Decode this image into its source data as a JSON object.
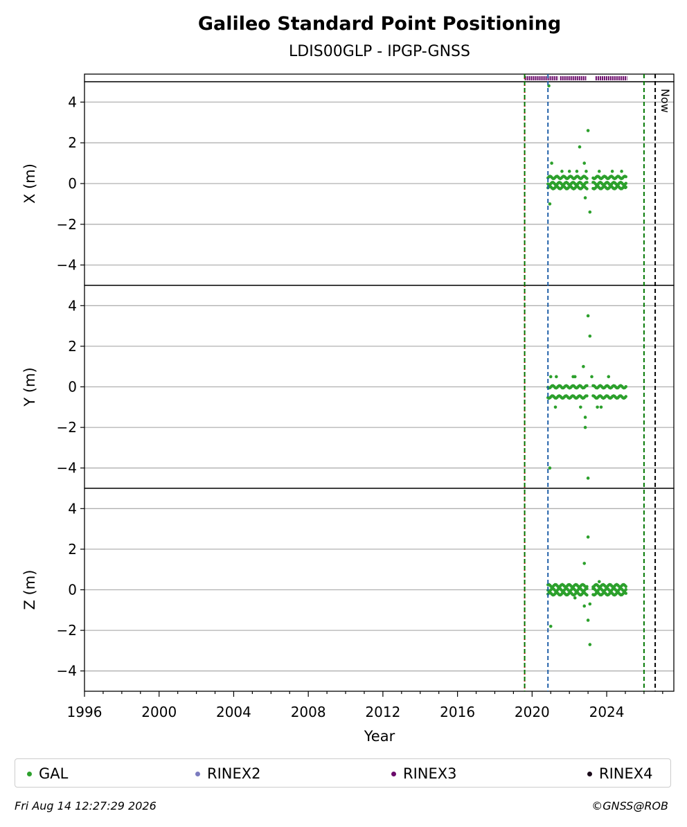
{
  "footer": {
    "date": "Fri Aug 14 12:27:29 2026",
    "copyright": "©GNSS@ROB"
  },
  "legend": [
    {
      "label": "GAL",
      "color": "#2ca02c"
    },
    {
      "label": "RINEX2",
      "color": "#7b7bbf"
    },
    {
      "label": "RINEX3",
      "color": "#6b0a6b"
    },
    {
      "label": "RINEX4",
      "color": "#1a0a1a"
    }
  ],
  "chart_data": {
    "type": "scatter",
    "title": "Galileo Standard Point Positioning",
    "subtitle": "LDIS00GLP - IPGP-GNSS",
    "xlabel": "Year",
    "xlim": [
      1996,
      2027.6
    ],
    "xticks": [
      "1996",
      "2000",
      "2004",
      "2008",
      "2012",
      "2016",
      "2020",
      "2024"
    ],
    "ylim": [
      -5,
      5
    ],
    "yticks": [
      "−4",
      "−2",
      "0",
      "2",
      "4"
    ],
    "grid": true,
    "legend_position": "bottom",
    "vertical_lines": [
      {
        "x": 2019.6,
        "color": "#cc0000",
        "style": "dotted"
      },
      {
        "x": 2019.6,
        "color": "#007700",
        "style": "dashed"
      },
      {
        "x": 2020.85,
        "color": "#1f5fa8",
        "style": "dashed"
      },
      {
        "x": 2026.0,
        "color": "#007700",
        "style": "dashed"
      },
      {
        "x": 2026.6,
        "color": "#000000",
        "style": "dashed",
        "label": "Now"
      }
    ],
    "rinex3_coverage": [
      [
        2019.6,
        2021.4
      ],
      [
        2021.5,
        2022.9
      ],
      [
        2023.4,
        2025.1
      ]
    ],
    "panels": [
      {
        "ylabel": "X (m)",
        "series": [
          {
            "name": "GAL",
            "color": "#2ca02c",
            "points": [
              [
                2020.9,
                4.8
              ],
              [
                2020.95,
                -1.0
              ],
              [
                2021.05,
                1.0
              ],
              [
                2022.55,
                1.8
              ],
              [
                2022.8,
                1.0
              ],
              [
                2023.0,
                2.6
              ],
              [
                2023.1,
                -1.4
              ],
              [
                2022.85,
                -0.7
              ],
              [
                2021.6,
                0.6
              ],
              [
                2022.0,
                0.6
              ],
              [
                2022.4,
                0.6
              ],
              [
                2022.9,
                0.6
              ],
              [
                2023.6,
                0.6
              ],
              [
                2024.3,
                0.6
              ],
              [
                2024.8,
                0.6
              ],
              [
                2025.0,
                -0.2
              ]
            ],
            "bands": [
              [
                2020.85,
                2025.05,
                [
                  -0.2,
                  0.0,
                  0.3
                ]
              ]
            ]
          }
        ]
      },
      {
        "ylabel": "Y (m)",
        "series": [
          {
            "name": "GAL",
            "color": "#2ca02c",
            "points": [
              [
                2020.95,
                -4.0
              ],
              [
                2021.25,
                -1.0
              ],
              [
                2022.75,
                1.0
              ],
              [
                2023.0,
                3.5
              ],
              [
                2023.1,
                2.5
              ],
              [
                2022.85,
                -1.5
              ],
              [
                2022.85,
                -2.0
              ],
              [
                2023.0,
                -4.5
              ],
              [
                2022.6,
                -1.0
              ],
              [
                2023.7,
                -1.0
              ],
              [
                2023.5,
                -1.0
              ],
              [
                2021.0,
                0.5
              ],
              [
                2021.3,
                0.5
              ],
              [
                2022.2,
                0.5
              ],
              [
                2022.3,
                0.5
              ],
              [
                2023.2,
                0.5
              ],
              [
                2024.1,
                0.5
              ]
            ],
            "bands": [
              [
                2020.85,
                2025.05,
                [
                  -0.5,
                  0.0
                ]
              ]
            ]
          }
        ]
      },
      {
        "ylabel": "Z (m)",
        "series": [
          {
            "name": "GAL",
            "color": "#2ca02c",
            "points": [
              [
                2021.0,
                -1.8
              ],
              [
                2022.8,
                1.3
              ],
              [
                2023.0,
                2.6
              ],
              [
                2023.0,
                -1.5
              ],
              [
                2023.1,
                -2.7
              ],
              [
                2022.8,
                -0.8
              ],
              [
                2023.1,
                -0.7
              ],
              [
                2022.3,
                -0.4
              ],
              [
                2023.6,
                0.4
              ]
            ],
            "bands": [
              [
                2020.85,
                2025.05,
                [
                  -0.2,
                  0.0,
                  0.2
                ]
              ]
            ]
          }
        ]
      }
    ]
  }
}
